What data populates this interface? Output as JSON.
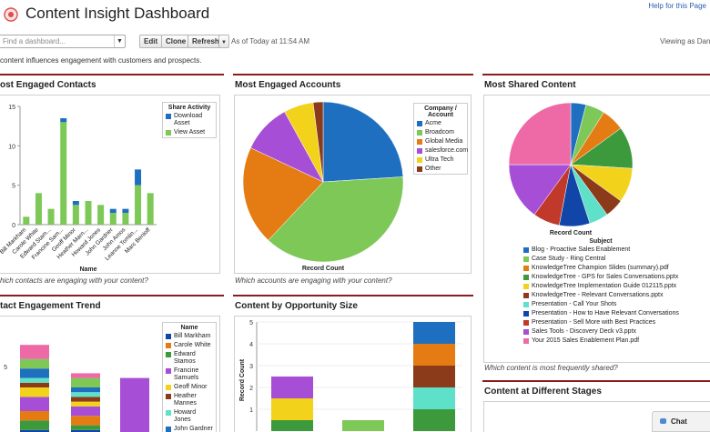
{
  "header": {
    "title": "Content Insight Dashboard",
    "help_link": "Help for this Page"
  },
  "toolbar": {
    "find_placeholder": "Find a dashboard...",
    "edit_label": "Edit",
    "clone_label": "Clone",
    "refresh_label": "Refresh",
    "as_of": "As of Today at 11:54 AM",
    "viewing_as": "Viewing as Dane"
  },
  "description": "content influences engagement with customers and prospects.",
  "panels": {
    "contacts": {
      "title": "ost Engaged Contacts",
      "footer": "hich contacts are engaging with your content?",
      "legend_title": "Share Activity",
      "x_axis_label": "Name"
    },
    "accounts": {
      "title": "Most Engaged Accounts",
      "footer": "Which accounts are engaging with your content?",
      "legend_title": "Company / Account",
      "x_label": "Record Count"
    },
    "shared": {
      "title": "Most Shared Content",
      "footer": "Which content is most frequently shared?",
      "legend_title": "Subject",
      "x_label": "Record Count"
    },
    "trend": {
      "title": "tact Engagement Trend",
      "legend_title": "Name"
    },
    "opportunity": {
      "title": "Content by Opportunity Size",
      "y_label": "Record Count"
    },
    "stages": {
      "title": "Content at Different Stages"
    }
  },
  "chat": {
    "label": "Chat"
  },
  "colors": {
    "accent_bar": "#8b1d1d",
    "series": [
      "#1f6fc1",
      "#7dc857",
      "#e57c13",
      "#3c9a3c",
      "#a64fd6",
      "#f2d21a",
      "#8b3a1a",
      "#5fe0c8",
      "#1245a8",
      "#c0392b",
      "#ee6aa7",
      "#ffd700"
    ]
  },
  "chart_data": [
    {
      "id": "contacts",
      "type": "bar",
      "title": "ost Engaged Contacts",
      "xlabel": "Name",
      "ylabel": "",
      "ylim": [
        0,
        15
      ],
      "yticks": [
        0,
        5,
        10,
        15
      ],
      "categories": [
        "Bill Markham",
        "Carole White",
        "Edward Stam...",
        "Francine Sam...",
        "Geoff Minor",
        "Heather Marn...",
        "Howard Jones",
        "John Gardner",
        "John Amos",
        "Leanne Tomlin...",
        "Marc Benioff"
      ],
      "series": [
        {
          "name": "Download Asset",
          "values": [
            0,
            0,
            0,
            0.5,
            0.5,
            0,
            0,
            0.5,
            0.5,
            2,
            0
          ]
        },
        {
          "name": "View Asset",
          "values": [
            1,
            4,
            2,
            13,
            2.5,
            3,
            2.5,
            1.5,
            1.5,
            5,
            4
          ]
        }
      ],
      "legend": "top-right"
    },
    {
      "id": "accounts",
      "type": "pie",
      "xlabel": "Record Count",
      "categories": [
        "Acme",
        "Broadcom",
        "Global Media",
        "salesforce.com",
        "Ultra Tech",
        "Other"
      ],
      "values": [
        24,
        38,
        20,
        10,
        6,
        2
      ],
      "legend": "right"
    },
    {
      "id": "shared",
      "type": "pie",
      "xlabel": "Record Count",
      "categories": [
        "Blog - Proactive Sales Enablement",
        "Case Study - Ring Central",
        "KnowledgeTree Champion Slides (summary).pdf",
        "KnowledgeTree - GPS for Sales Conversations.pptx",
        "KnowledgeTree Implementation Guide 012115.pptx",
        "KnowledgeTree - Relevant Conversations.pptx",
        "Presentation - Call Your Shots",
        "Presentation - How to Have Relevant Conversations",
        "Presentation - Sell More with Best Practices",
        "Sales Tools - Discovery Deck v3.pptx",
        "Your 2015 Sales Enablement Plan.pdf"
      ],
      "values": [
        4,
        5,
        6,
        11,
        9,
        5,
        5,
        8,
        7,
        15,
        25
      ],
      "legend": "bottom"
    },
    {
      "id": "trend",
      "type": "bar",
      "title": "tact Engagement Trend",
      "legend_entries": [
        "Bill Markham",
        "Carole White",
        "Edward Stamos",
        "Francine Samuels",
        "Geoff Minor",
        "Heather Mannes",
        "Howard Jones",
        "John Gardner"
      ],
      "categories": [
        "",
        "",
        "",
        ""
      ],
      "series": [
        {
          "name": "Bill Markham",
          "values": [
            1,
            1,
            0,
            0
          ]
        },
        {
          "name": "Carole White",
          "values": [
            2,
            1,
            0,
            0
          ]
        },
        {
          "name": "Edward Stamos",
          "values": [
            2,
            2,
            0,
            0
          ]
        },
        {
          "name": "Francine Samuels",
          "values": [
            3,
            2,
            0,
            12
          ]
        },
        {
          "name": "Geoff Minor",
          "values": [
            2,
            1,
            0,
            0
          ]
        },
        {
          "name": "Heather Mannes",
          "values": [
            1,
            1,
            0,
            0
          ]
        },
        {
          "name": "Howard Jones",
          "values": [
            1,
            1,
            0,
            0
          ]
        },
        {
          "name": "John Gardner",
          "values": [
            2,
            1,
            0,
            0
          ]
        },
        {
          "name": "",
          "values": [
            2,
            2,
            0,
            0
          ]
        },
        {
          "name": "",
          "values": [
            3,
            1,
            0,
            0
          ]
        }
      ],
      "yticks": [
        "5",
        "0"
      ],
      "legend": "right"
    },
    {
      "id": "opportunity",
      "type": "bar",
      "ylabel": "Record Count",
      "ylim": [
        0,
        5
      ],
      "yticks": [
        1,
        2,
        3,
        4,
        5
      ],
      "categories": [
        "",
        "",
        "",
        ""
      ],
      "series": [
        {
          "name": "",
          "values": [
            0.5,
            0,
            0,
            1
          ]
        },
        {
          "name": "",
          "values": [
            1,
            0,
            0,
            1
          ]
        },
        {
          "name": "",
          "values": [
            0,
            0,
            0,
            1
          ]
        },
        {
          "name": "",
          "values": [
            1.5,
            0,
            0,
            0
          ]
        },
        {
          "name": "",
          "values": [
            0,
            0.5,
            0,
            1
          ]
        },
        {
          "name": "",
          "values": [
            0,
            0,
            0,
            1
          ]
        }
      ]
    }
  ]
}
